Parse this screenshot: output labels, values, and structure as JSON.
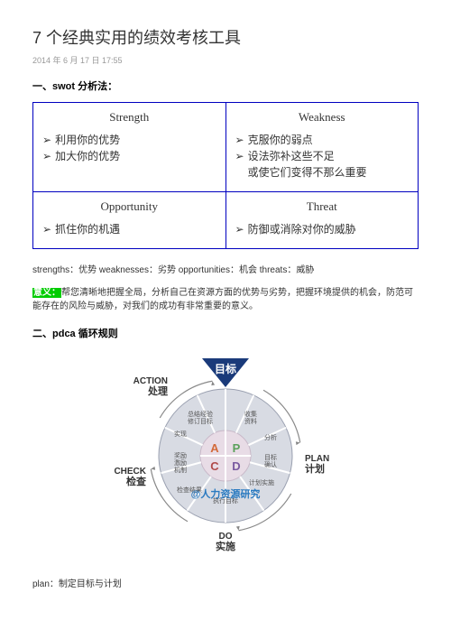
{
  "page": {
    "title": "7 个经典实用的绩效考核工具",
    "date": "2014 年 6 月 17 日 17:55"
  },
  "section1": {
    "head": "一、swot 分析法：",
    "swot": {
      "s": {
        "title": "Strength",
        "lines": [
          "利用你的优势",
          "加大你的优势"
        ]
      },
      "w": {
        "title": "Weakness",
        "lines": [
          "克服你的弱点",
          "设法弥补这些不足",
          "或使它们变得不那么重要"
        ]
      },
      "o": {
        "title": "Opportunity",
        "lines": [
          "抓住你的机遇"
        ]
      },
      "t": {
        "title": "Threat",
        "lines": [
          "防御或消除对你的威胁"
        ]
      }
    },
    "defs": "strengths：优势 weaknesses：劣势 opportunities：机会 threats：威胁",
    "meaning_label": "意义：",
    "meaning_body": "帮您清晰地把握全局，分析自己在资源方面的优势与劣势，把握环境提供的机会，防范可能存在的风险与威胁，对我们的成功有非常重要的意义。"
  },
  "section2": {
    "head": "二、pdca 循环规则",
    "pdca": {
      "goal": "目标",
      "action": {
        "en": "ACTION",
        "zh": "处理"
      },
      "plan": {
        "en": "PLAN",
        "zh": "计划"
      },
      "check": {
        "en": "CHECK",
        "zh": "检查"
      },
      "do": {
        "en": "DO",
        "zh": "实施"
      },
      "center_letters": [
        "A",
        "P",
        "C",
        "D"
      ],
      "inner_texts": {
        "tl": "总结经验\n修订目标",
        "tr": "收集\n资料",
        "r1": "分析",
        "r2": "目标\n确认",
        "br": "计划实施",
        "b": "执行目标",
        "bl": "检查结果",
        "l1": "奖励\n激励\n机制",
        "l2": "实现"
      },
      "watermark": "@人力资源研究",
      "colors": {
        "goal_triangle": "#1a3a7a",
        "ring_fill": "#d8dbe3",
        "ring_stroke": "#9aa0b0",
        "center_fill": "#e8dce6",
        "center_stroke": "#c8b8c8",
        "spoke": "#ffffff",
        "letter_a": "#d36a3a",
        "letter_p": "#5aa05a",
        "letter_c": "#b04a4a",
        "letter_d": "#7a5aa0",
        "label_text": "#333333",
        "inner_text": "#555555",
        "watermark": "#2a7ac0",
        "arrow": "#888888"
      }
    },
    "plan_line": "plan：制定目标与计划"
  }
}
